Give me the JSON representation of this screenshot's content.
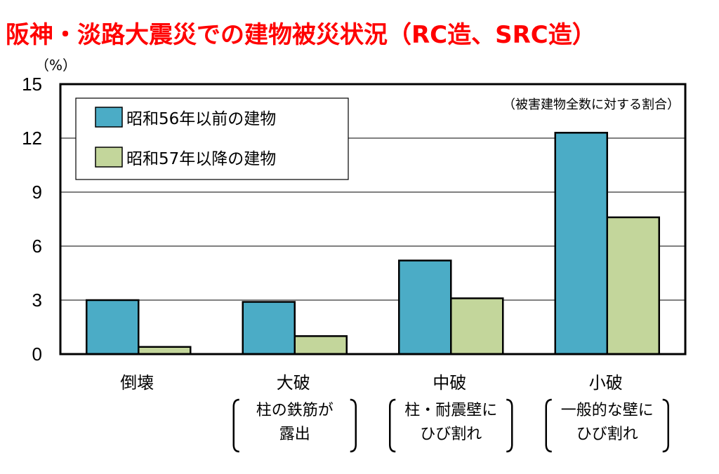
{
  "chart_data": {
    "type": "bar",
    "title": "阪神・淡路大震災での建物被災状況（RC造、SRC造）",
    "ylabel": "（%）",
    "note": "（被害建物全数に対する割合）",
    "ylim": [
      0,
      15
    ],
    "yticks": [
      0,
      3,
      6,
      9,
      12,
      15
    ],
    "grid": true,
    "legend_position": "top-left",
    "categories": [
      "倒壊",
      "大破",
      "中破",
      "小破"
    ],
    "category_descriptions": [
      [],
      [
        "柱の鉄筋が",
        "露出"
      ],
      [
        "柱・耐震壁に",
        "ひび割れ"
      ],
      [
        "一般的な壁に",
        "ひび割れ"
      ]
    ],
    "series": [
      {
        "name": "昭和56年以前の建物",
        "color": "#4bacc6",
        "values": [
          3.0,
          2.9,
          5.2,
          12.3
        ]
      },
      {
        "name": "昭和57年以降の建物",
        "color": "#c3d69b",
        "values": [
          0.4,
          1.0,
          3.1,
          7.6
        ]
      }
    ]
  }
}
